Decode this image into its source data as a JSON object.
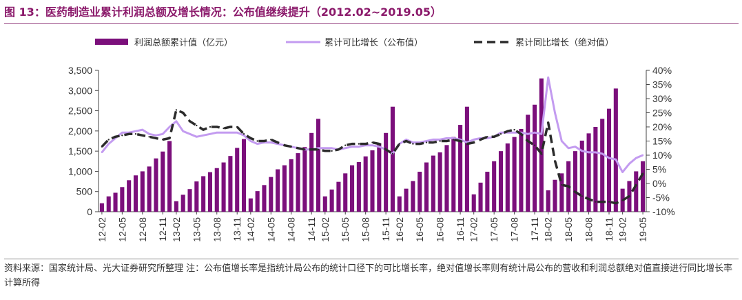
{
  "title": "图 13：医药制造业累计利润总额及增长情况：公布值继续提升（2012.02~2019.05）",
  "source": "资料来源：国家统计局、光大证券研究所整理 注：公布值增长率是指统计局公布的统计口径下的可比增长率，绝对值增长率则有统计局公布的营收和利润总额绝对值直接进行同比增长率计算所得",
  "colors": {
    "bar": "#7B0F7B",
    "line_published": "#C39BF0",
    "line_absolute": "#2B2B2B",
    "title": "#8B1A6B"
  },
  "chart_data": {
    "type": "bar",
    "x": [
      "12-02",
      "12-03",
      "12-04",
      "12-05",
      "12-06",
      "12-07",
      "12-08",
      "12-09",
      "12-10",
      "12-11",
      "12-12",
      "13-02",
      "13-03",
      "13-04",
      "13-05",
      "13-06",
      "13-07",
      "13-08",
      "13-09",
      "13-10",
      "13-11",
      "13-12",
      "14-02",
      "14-03",
      "14-04",
      "14-05",
      "14-06",
      "14-07",
      "14-08",
      "14-09",
      "14-10",
      "14-11",
      "14-12",
      "15-02",
      "15-03",
      "15-04",
      "15-05",
      "15-06",
      "15-07",
      "15-08",
      "15-09",
      "15-10",
      "15-11",
      "15-12",
      "16-02",
      "16-03",
      "16-04",
      "16-05",
      "16-06",
      "16-07",
      "16-08",
      "16-09",
      "16-10",
      "16-11",
      "16-12",
      "17-02",
      "17-03",
      "17-04",
      "17-05",
      "17-06",
      "17-07",
      "17-08",
      "17-09",
      "17-10",
      "17-11",
      "17-12",
      "18-02",
      "18-03",
      "18-04",
      "18-05",
      "18-06",
      "18-07",
      "18-08",
      "18-09",
      "18-10",
      "18-11",
      "18-12",
      "19-02",
      "19-03",
      "19-04",
      "19-05"
    ],
    "xtick_labels": [
      "12-02",
      "12-05",
      "12-08",
      "12-11",
      "13-02",
      "13-05",
      "13-08",
      "13-11",
      "14-02",
      "14-05",
      "14-08",
      "14-11",
      "15-02",
      "15-05",
      "15-08",
      "15-11",
      "16-02",
      "16-05",
      "16-08",
      "16-11",
      "17-02",
      "17-05",
      "17-08",
      "17-11",
      "18-02",
      "18-05",
      "18-08",
      "18-11",
      "19-02",
      "19-05"
    ],
    "y_left": {
      "ylim": [
        0,
        3500
      ],
      "ticks": [
        "0",
        "500",
        "1,000",
        "1,500",
        "2,000",
        "2,500",
        "3,000",
        "3,500"
      ]
    },
    "y_right": {
      "ylim": [
        -10,
        40
      ],
      "ticks": [
        "-10%",
        "-5%",
        "0%",
        "5%",
        "10%",
        "15%",
        "20%",
        "25%",
        "30%",
        "35%",
        "40%"
      ]
    },
    "series": [
      {
        "name": "利润总额累计值（亿元）",
        "type": "bar",
        "axis": "left",
        "values": [
          210,
          380,
          470,
          610,
          780,
          900,
          1000,
          1120,
          1320,
          1490,
          1750,
          260,
          420,
          560,
          750,
          880,
          980,
          1080,
          1220,
          1380,
          1580,
          1800,
          330,
          510,
          660,
          860,
          1050,
          1150,
          1300,
          1450,
          1600,
          1950,
          2300,
          380,
          550,
          740,
          950,
          1150,
          1230,
          1370,
          1520,
          1700,
          1950,
          2600,
          380,
          570,
          760,
          990,
          1220,
          1390,
          1470,
          1650,
          1850,
          2150,
          2600,
          430,
          720,
          990,
          1250,
          1500,
          1690,
          1850,
          2050,
          2400,
          2650,
          3300,
          530,
          790,
          950,
          1250,
          1500,
          1760,
          1940,
          2100,
          2300,
          2550,
          3050,
          570,
          760,
          1000,
          1250
        ]
      },
      {
        "name": "累计可比增长（公布值）",
        "type": "line",
        "axis": "right",
        "values": [
          11,
          14,
          16,
          18,
          18,
          18.5,
          19,
          17.5,
          17,
          17.5,
          20,
          22,
          18.5,
          17.5,
          16.5,
          17,
          17.5,
          18,
          18,
          18,
          18,
          17,
          15,
          14,
          14.5,
          14.5,
          14,
          13.5,
          13,
          12.5,
          12,
          12,
          12.5,
          12.5,
          12.5,
          12,
          12.5,
          13,
          13,
          13.5,
          13.5,
          13,
          12,
          10.5,
          14,
          15.5,
          14.5,
          14.5,
          15,
          15.5,
          15.5,
          16,
          16,
          15.5,
          14.5,
          15.5,
          16,
          16,
          16.5,
          18,
          18,
          18,
          18,
          17.5,
          18,
          17.5,
          37.5,
          25,
          15,
          12.5,
          13,
          11.5,
          11,
          11,
          10.5,
          9,
          8.5,
          4,
          7,
          9,
          10
        ]
      },
      {
        "name": "累计同比增长（绝对值）",
        "type": "line",
        "axis": "right",
        "values": [
          13,
          15.5,
          16.5,
          17,
          17.5,
          17.5,
          17,
          16.5,
          16,
          15.5,
          16,
          26,
          25,
          22,
          20.5,
          19,
          20,
          20,
          19.5,
          20,
          20,
          17.5,
          16,
          15,
          15,
          15.5,
          14.5,
          13.5,
          13,
          12.5,
          12,
          12,
          12,
          11.5,
          11.5,
          12,
          13.5,
          14,
          14,
          14,
          14.5,
          14,
          12,
          10.5,
          14,
          15,
          14,
          14,
          14.5,
          14.5,
          15,
          15,
          15.5,
          15,
          14,
          14.5,
          15.5,
          16.5,
          16.5,
          17.5,
          18.5,
          19,
          17.5,
          15,
          13.5,
          10.5,
          21.5,
          8,
          -0.5,
          -1,
          -3,
          -4.5,
          -5.5,
          -6.5,
          -6.5,
          -6.5,
          -7,
          -6,
          -4.5,
          -0.5,
          3.5
        ]
      }
    ],
    "legend_position": "top"
  }
}
